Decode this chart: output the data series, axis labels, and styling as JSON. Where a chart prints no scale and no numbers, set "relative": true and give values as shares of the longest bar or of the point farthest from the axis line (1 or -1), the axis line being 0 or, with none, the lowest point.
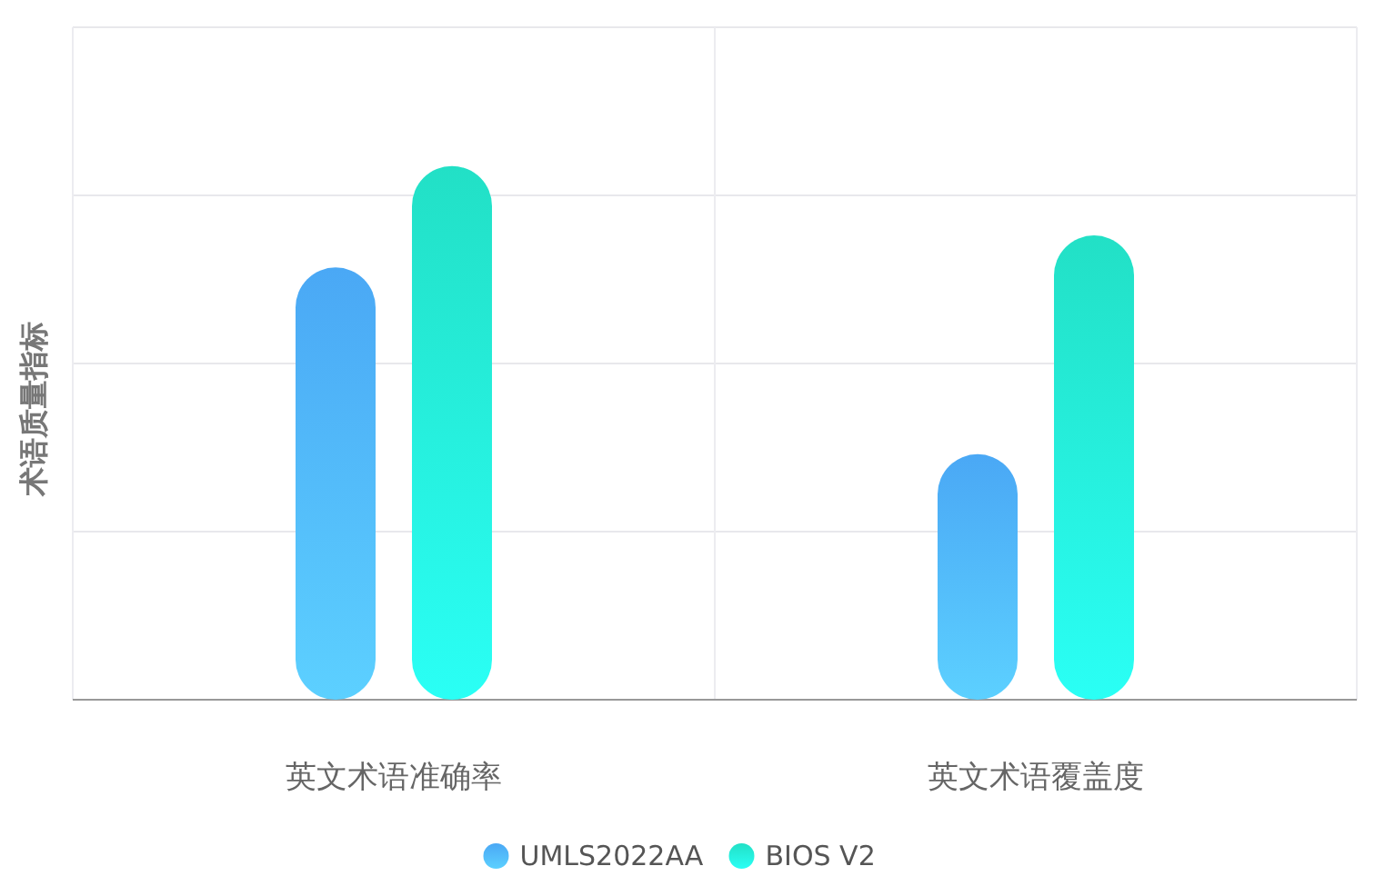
{
  "chart_data": {
    "type": "bar",
    "relative": true,
    "ylabel": "术语质量指标",
    "categories": [
      "英文术语准确率",
      "英文术语覆盖度"
    ],
    "series": [
      {
        "name": "UMLS2022AA",
        "color": "#4aa8f5",
        "values": [
          0.81,
          0.46
        ]
      },
      {
        "name": "BIOS V2",
        "color": "#22e0c6",
        "values": [
          1,
          0.87
        ]
      }
    ],
    "grid": true,
    "legend": "bottom"
  }
}
